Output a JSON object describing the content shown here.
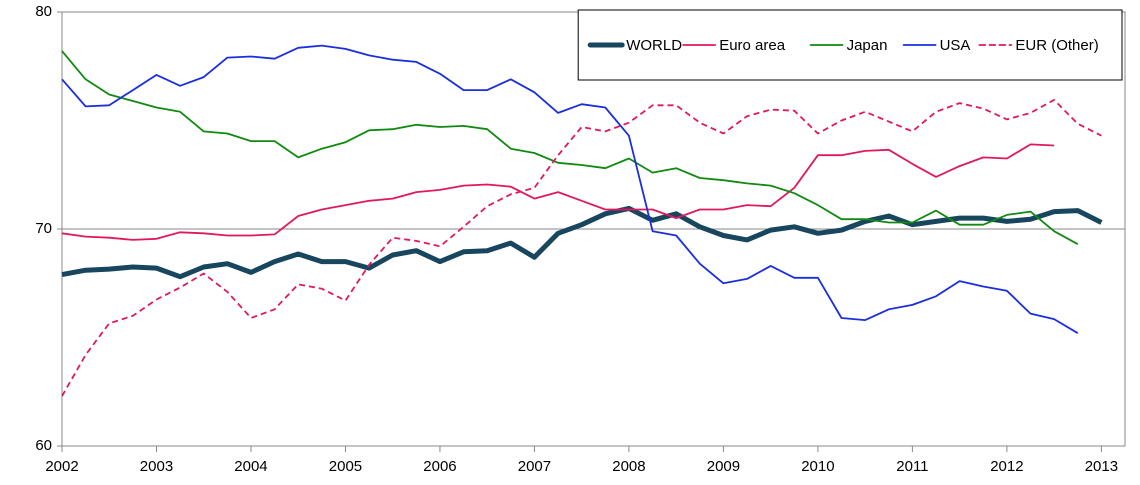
{
  "chart_data": {
    "type": "line",
    "x": [
      2002,
      2002.25,
      2002.5,
      2002.75,
      2003,
      2003.25,
      2003.5,
      2003.75,
      2004,
      2004.25,
      2004.5,
      2004.75,
      2005,
      2005.25,
      2005.5,
      2005.75,
      2006,
      2006.25,
      2006.5,
      2006.75,
      2007,
      2007.25,
      2007.5,
      2007.75,
      2008,
      2008.25,
      2008.5,
      2008.75,
      2009,
      2009.25,
      2009.5,
      2009.75,
      2010,
      2010.25,
      2010.5,
      2010.75,
      2011,
      2011.25,
      2011.5,
      2011.75,
      2012,
      2012.25,
      2012.5,
      2012.75,
      2013
    ],
    "series": [
      {
        "name": "WORLD",
        "color": "#17465e",
        "line_width": 5,
        "dashed": false,
        "values": [
          67.9,
          68.1,
          68.15,
          68.25,
          68.2,
          67.8,
          68.25,
          68.4,
          68.0,
          68.5,
          68.85,
          68.5,
          68.5,
          68.2,
          68.8,
          69.0,
          68.5,
          68.95,
          69.0,
          69.35,
          68.7,
          69.8,
          70.2,
          70.7,
          70.95,
          70.4,
          70.7,
          70.1,
          69.7,
          69.5,
          69.95,
          70.1,
          69.8,
          69.95,
          70.35,
          70.6,
          70.2,
          70.35,
          70.5,
          70.5,
          70.35,
          70.45,
          70.8,
          70.85,
          70.3
        ]
      },
      {
        "name": "Euro area",
        "color": "#e0195f",
        "line_width": 1.8,
        "dashed": false,
        "values": [
          69.8,
          69.65,
          69.6,
          69.5,
          69.55,
          69.85,
          69.8,
          69.7,
          69.7,
          69.75,
          70.6,
          70.9,
          71.1,
          71.3,
          71.4,
          71.7,
          71.8,
          72.0,
          72.05,
          71.95,
          71.4,
          71.7,
          71.3,
          70.9,
          70.9,
          70.9,
          70.5,
          70.9,
          70.9,
          71.1,
          71.05,
          71.9,
          73.4,
          73.4,
          73.6,
          73.65,
          73.0,
          72.4,
          72.9,
          73.3,
          73.25,
          73.9,
          73.85,
          null,
          null
        ]
      },
      {
        "name": "Japan",
        "color": "#108a10",
        "line_width": 1.8,
        "dashed": false,
        "values": [
          78.2,
          76.9,
          76.2,
          75.9,
          75.6,
          75.4,
          74.5,
          74.4,
          74.05,
          74.05,
          73.3,
          73.7,
          74.0,
          74.55,
          74.6,
          74.8,
          74.7,
          74.75,
          74.6,
          73.7,
          73.5,
          73.05,
          72.95,
          72.8,
          73.25,
          72.6,
          72.8,
          72.35,
          72.25,
          72.1,
          72.0,
          71.65,
          71.1,
          70.45,
          70.45,
          70.3,
          70.3,
          70.85,
          70.2,
          70.2,
          70.65,
          70.8,
          69.9,
          69.3,
          null
        ]
      },
      {
        "name": "USA",
        "color": "#1a2ee0",
        "line_width": 1.8,
        "dashed": false,
        "values": [
          76.9,
          75.65,
          75.7,
          76.4,
          77.1,
          76.6,
          77.0,
          77.9,
          77.95,
          77.85,
          78.35,
          78.45,
          78.3,
          78.0,
          77.8,
          77.7,
          77.15,
          76.4,
          76.4,
          76.9,
          76.3,
          75.35,
          75.75,
          75.6,
          74.3,
          69.9,
          69.7,
          68.4,
          67.5,
          67.7,
          68.3,
          67.75,
          67.75,
          65.9,
          65.8,
          66.3,
          66.5,
          66.9,
          67.6,
          67.35,
          67.15,
          66.1,
          65.85,
          65.2,
          null
        ]
      },
      {
        "name": "EUR (Other)",
        "color": "#e0195f",
        "line_width": 1.8,
        "dashed": true,
        "values": [
          62.3,
          64.2,
          65.65,
          66.0,
          66.75,
          67.3,
          67.95,
          67.1,
          65.9,
          66.3,
          67.45,
          67.25,
          66.7,
          68.35,
          69.6,
          69.45,
          69.2,
          70.1,
          71.05,
          71.6,
          71.9,
          73.4,
          74.7,
          74.5,
          74.9,
          75.7,
          75.7,
          74.9,
          74.4,
          75.2,
          75.5,
          75.45,
          74.4,
          75.0,
          75.4,
          74.95,
          74.5,
          75.4,
          75.8,
          75.55,
          75.05,
          75.35,
          75.95,
          74.85,
          74.3
        ]
      }
    ],
    "xlim": [
      2002,
      2013.25
    ],
    "xticks": [
      2002,
      2003,
      2004,
      2005,
      2006,
      2007,
      2008,
      2009,
      2010,
      2011,
      2012,
      2013
    ],
    "ylim": [
      60,
      80
    ],
    "yticks": [
      60,
      70,
      80
    ],
    "grid": true,
    "legend": "top-right"
  }
}
